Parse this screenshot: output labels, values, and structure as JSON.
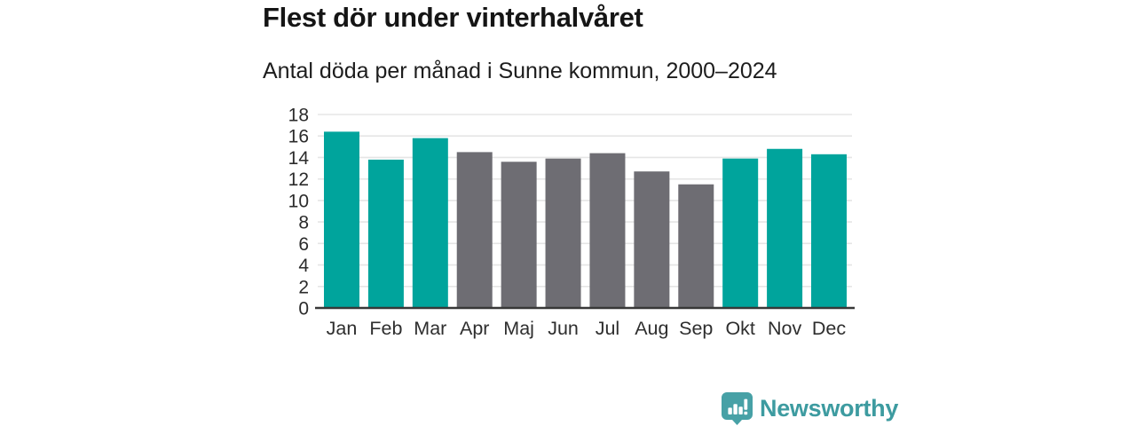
{
  "chart_data": {
    "type": "bar",
    "title": "Flest dör under vinterhalvåret",
    "subtitle": "Antal döda per månad i Sunne kommun, 2000–2024",
    "categories": [
      "Jan",
      "Feb",
      "Mar",
      "Apr",
      "Maj",
      "Jun",
      "Jul",
      "Aug",
      "Sep",
      "Okt",
      "Nov",
      "Dec"
    ],
    "values": [
      16.4,
      13.8,
      15.8,
      14.5,
      13.6,
      13.9,
      14.4,
      12.7,
      11.5,
      13.9,
      14.8,
      14.3
    ],
    "bar_color_keys": [
      "teal",
      "teal",
      "teal",
      "gray",
      "gray",
      "gray",
      "gray",
      "gray",
      "gray",
      "teal",
      "teal",
      "teal"
    ],
    "colors": {
      "teal": "#00a49c",
      "gray": "#6e6d73"
    },
    "highlighted_categories": [
      "Jan",
      "Feb",
      "Mar",
      "Okt",
      "Nov",
      "Dec"
    ],
    "xlabel": "",
    "ylabel": "",
    "ylim": [
      0,
      18
    ],
    "yticks": [
      0,
      2,
      4,
      6,
      8,
      10,
      12,
      14,
      16,
      18
    ],
    "grid": true,
    "legend": false
  },
  "footer": {
    "brand": "Newsworthy",
    "logo_icon": "bar-chart-speech-bubble-icon",
    "brand_color": "#3d9ba0",
    "icon_color": "#47a1a6"
  }
}
